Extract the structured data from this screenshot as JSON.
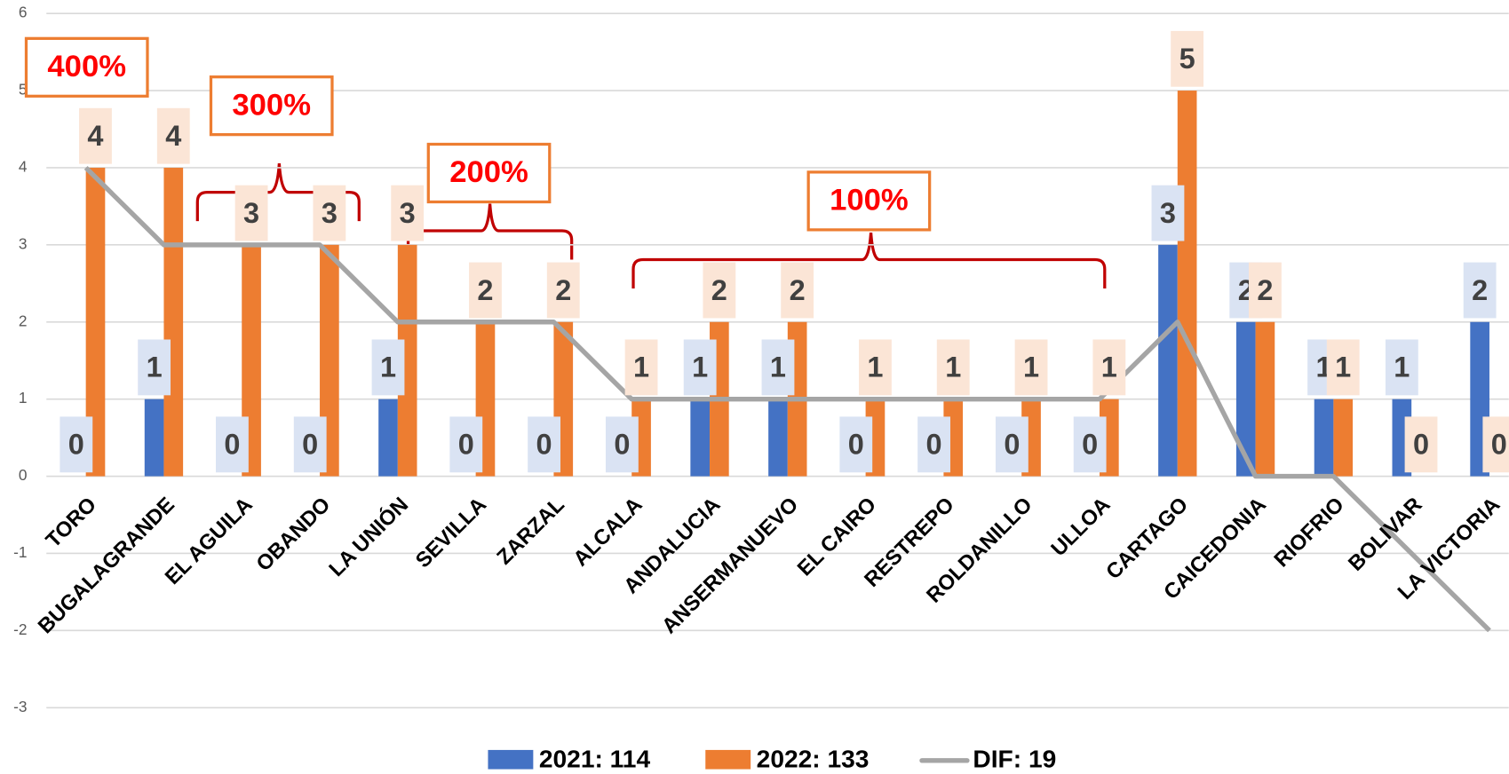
{
  "chart_data": {
    "type": "bar",
    "categories": [
      "TORO",
      "BUGALAGRANDE",
      "EL AGUILA",
      "OBANDO",
      "LA UNIÓN",
      "SEVILLA",
      "ZARZAL",
      "ALCALA",
      "ANDALUCIA",
      "ANSERMANUEVO",
      "EL CAIRO",
      "RESTREPO",
      "ROLDANILLO",
      "ULLOA",
      "CARTAGO",
      "CAICEDONIA",
      "RIOFRIO",
      "BOLIVAR",
      "LA VICTORIA"
    ],
    "series": [
      {
        "name": "2021: 114",
        "color": "#4472c4",
        "type": "bar",
        "values": [
          0,
          1,
          0,
          0,
          1,
          0,
          0,
          0,
          1,
          1,
          0,
          0,
          0,
          0,
          3,
          2,
          1,
          1,
          2
        ]
      },
      {
        "name": "2022: 133",
        "color": "#ed7d31",
        "type": "bar",
        "values": [
          4,
          4,
          3,
          3,
          3,
          2,
          2,
          1,
          2,
          2,
          1,
          1,
          1,
          1,
          5,
          2,
          1,
          0,
          0
        ]
      },
      {
        "name": "DIF: 19",
        "color": "#a5a5a5",
        "type": "line",
        "values": [
          4,
          3,
          3,
          3,
          2,
          2,
          2,
          1,
          1,
          1,
          1,
          1,
          1,
          1,
          2,
          0,
          0,
          -1,
          -2
        ]
      }
    ],
    "ylim": [
      -3,
      6
    ],
    "yticks": [
      -3,
      -2,
      -1,
      0,
      1,
      2,
      3,
      4,
      5,
      6
    ],
    "grid": true,
    "legend": "bottom",
    "annotations": [
      "400%",
      "300%",
      "200%",
      "100%"
    ]
  }
}
